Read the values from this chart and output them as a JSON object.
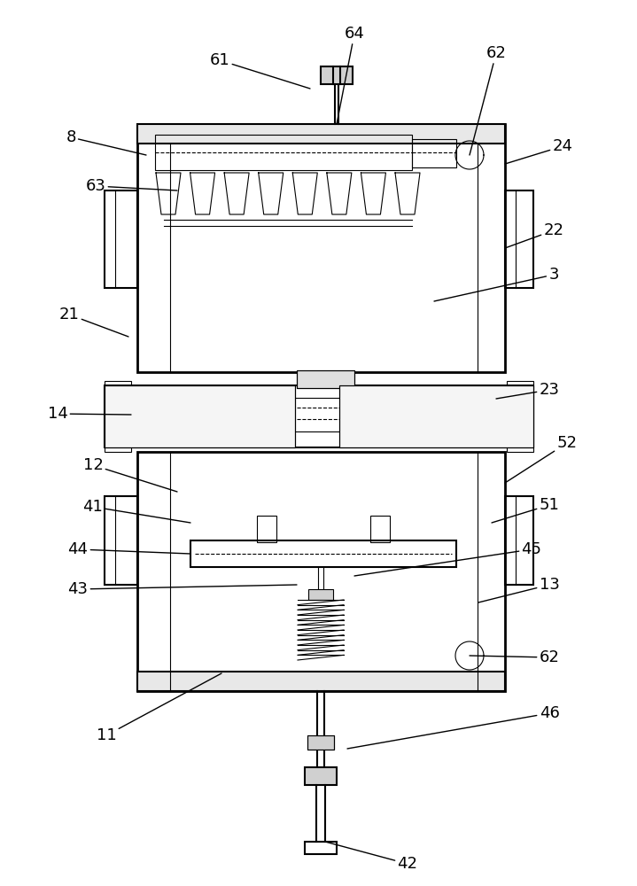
{
  "bg_color": "#ffffff",
  "line_color": "#000000",
  "lw": 1.5,
  "lw_thin": 0.8,
  "lw_thick": 2.0,
  "fig_width": 7.19,
  "fig_height": 10.0
}
